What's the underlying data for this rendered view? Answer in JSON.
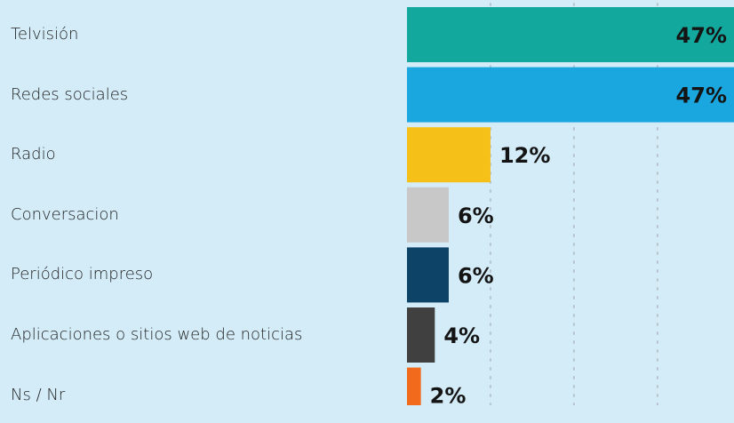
{
  "chart_data": {
    "type": "barh",
    "categories": [
      "Telvisión",
      "Redes sociales",
      "Radio",
      "Conversacion",
      "Periódico impreso",
      "Aplicaciones o sitios web de noticias",
      "Ns / Nr"
    ],
    "values": [
      47,
      47,
      12,
      6,
      6,
      4,
      2
    ],
    "value_labels": [
      "47%",
      "47%",
      "12%",
      "6%",
      "6%",
      "4%",
      "2%"
    ],
    "colors": [
      "#13a89e",
      "#1aa7e0",
      "#f5c018",
      "#c8c8c8",
      "#0d4366",
      "#404040",
      "#f26b1d"
    ],
    "xlim": [
      0,
      47
    ],
    "xticks": [
      12,
      24,
      36
    ],
    "grid": true
  }
}
